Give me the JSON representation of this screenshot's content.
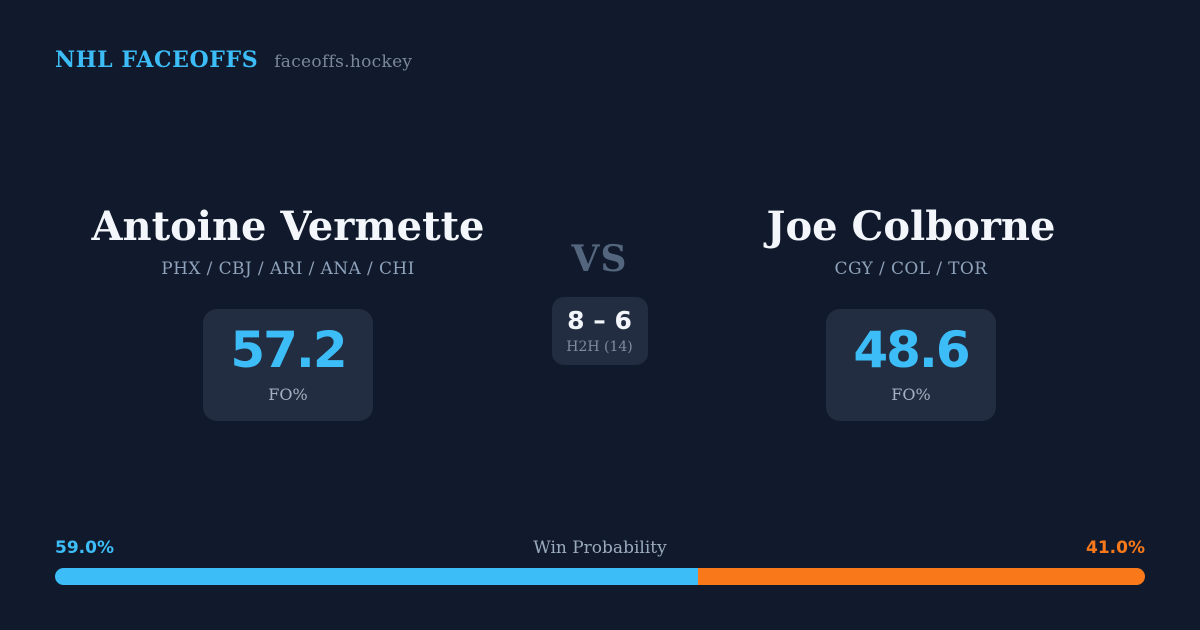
{
  "header": {
    "brand": "NHL FACEOFFS",
    "site": "faceoffs.hockey"
  },
  "matchup": {
    "vs_label": "VS",
    "left_player": {
      "name": "Antoine Vermette",
      "teams": "PHX / CBJ / ARI / ANA / CHI",
      "stat_value": "57.2",
      "stat_label": "FO%"
    },
    "right_player": {
      "name": "Joe Colborne",
      "teams": "CGY / COL / TOR",
      "stat_value": "48.6",
      "stat_label": "FO%"
    },
    "h2h": {
      "score": "8 – 6",
      "label": "H2H (14)"
    }
  },
  "win_probability": {
    "title": "Win Probability",
    "left_label": "59.0%",
    "right_label": "41.0%",
    "left_value": 59,
    "right_value": 41
  },
  "colors": {
    "background": "#111a2c",
    "card": "#222d41",
    "accent_blue": "#3cbdf7",
    "accent_orange": "#f9791a",
    "name_text": "#f3f6fa",
    "muted_text": "#8fa2bb"
  },
  "chart_data": {
    "type": "bar",
    "title": "Win Probability",
    "categories": [
      "Antoine Vermette",
      "Joe Colborne"
    ],
    "values": [
      59.0,
      41.0
    ],
    "colors": [
      "#3cbdf7",
      "#f9791a"
    ],
    "xlabel": "",
    "ylabel": "Win Probability %",
    "ylim": [
      0,
      100
    ]
  }
}
